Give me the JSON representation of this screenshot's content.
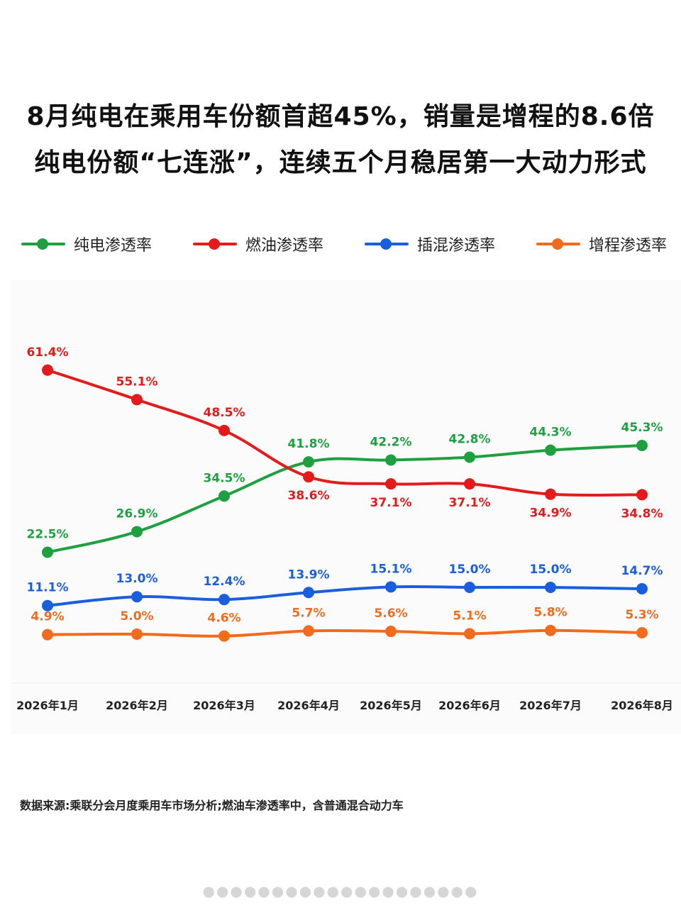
{
  "titles": {
    "line1": "8月纯电在乘用车份额首超45%，销量是增程的8.6倍",
    "line2": "纯电份额“七连涨”，连续五个月稳居第一大动力形式"
  },
  "chart_data": {
    "type": "line",
    "categories": [
      "2026年1月",
      "2026年2月",
      "2026年3月",
      "2026年4月",
      "2026年5月",
      "2026年6月",
      "2026年7月",
      "2026年8月"
    ],
    "ylim": [
      0,
      70
    ],
    "grid": false,
    "legend": "top",
    "series": [
      {
        "name": "纯电渗透率",
        "color": "#1fa040",
        "values": [
          22.5,
          26.9,
          34.5,
          41.8,
          42.2,
          42.8,
          44.3,
          45.3
        ],
        "labels": [
          "22.5%",
          "26.9%",
          "34.5%",
          "41.8%",
          "42.2%",
          "42.8%",
          "44.3%",
          "45.3%"
        ]
      },
      {
        "name": "燃油渗透率",
        "color": "#e31b1b",
        "values": [
          61.4,
          55.1,
          48.5,
          38.6,
          37.1,
          37.1,
          34.9,
          34.8
        ],
        "labels": [
          "61.4%",
          "55.1%",
          "48.5%",
          "38.6%",
          "37.1%",
          "37.1%",
          "34.9%",
          "34.8%"
        ]
      },
      {
        "name": "插混渗透率",
        "color": "#1a5ee0",
        "values": [
          11.1,
          13.0,
          12.4,
          13.9,
          15.1,
          15.0,
          15.0,
          14.7
        ],
        "labels": [
          "11.1%",
          "13.0%",
          "12.4%",
          "13.9%",
          "15.1%",
          "15.0%",
          "15.0%",
          "14.7%"
        ]
      },
      {
        "name": "增程渗透率",
        "color": "#f26b1d",
        "values": [
          4.9,
          5.0,
          4.6,
          5.7,
          5.6,
          5.1,
          5.8,
          5.3
        ],
        "labels": [
          "4.9%",
          "5.0%",
          "4.6%",
          "5.7%",
          "5.6%",
          "5.1%",
          "5.8%",
          "5.3%"
        ]
      }
    ]
  },
  "source": "数据来源:乘联分会月度乘用车市场分析;燃油车渗透率中，含普通混合动力车",
  "footer_dots": "●●●●●●●●●●●●●●●●●●●●"
}
